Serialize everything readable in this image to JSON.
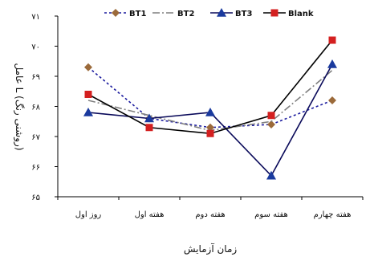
{
  "chart_data": {
    "type": "line",
    "categories": [
      "روز اول",
      "هفته اول",
      "هفته دوم",
      "هفته سوم",
      "هفته چهارم"
    ],
    "xlabel": "زمان آزمایش",
    "ylabel": "عامل L (روشنی رنگ)",
    "ylim": [
      65,
      71
    ],
    "yticks": [
      65,
      66,
      67,
      68,
      69,
      70,
      71
    ],
    "ytick_labels": [
      "۶۵",
      "۶۶",
      "۶۷",
      "۶۸",
      "۶۹",
      "۷۰",
      "۷۱"
    ],
    "grid": false,
    "legend_position": "top",
    "series": [
      {
        "name": "BT1",
        "values": [
          69.3,
          67.6,
          67.3,
          67.4,
          68.2
        ],
        "color": "#1a1a9e",
        "dash": "3,3",
        "marker": "diamond"
      },
      {
        "name": "BT2",
        "values": [
          68.2,
          67.7,
          67.2,
          67.5,
          69.2
        ],
        "color": "#7f7f7f",
        "dash": "9,3,2,3",
        "marker": "none"
      },
      {
        "name": "BT3",
        "values": [
          67.8,
          67.6,
          67.8,
          65.7,
          69.4
        ],
        "color": "#0a0a5a",
        "dash": "",
        "marker": "triangle"
      },
      {
        "name": "Blank",
        "values": [
          68.4,
          67.3,
          67.1,
          67.7,
          70.2
        ],
        "color": "#000000",
        "dash": "",
        "marker": "square"
      }
    ],
    "marker_colors": {
      "bt1_diamond": "#9b6a3a",
      "blank_square": "#d42020",
      "bt3_triangle": "#1a3a9e"
    }
  }
}
